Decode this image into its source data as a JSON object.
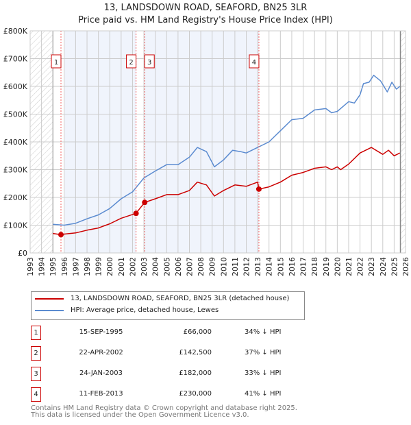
{
  "chart_data": {
    "type": "line",
    "title": "13, LANDSDOWN ROAD, SEAFORD, BN25 3LR",
    "subtitle": "Price paid vs. HM Land Registry's House Price Index (HPI)",
    "xlim": [
      1993,
      2026
    ],
    "ylim": [
      0,
      800000
    ],
    "y_ticks": [
      {
        "v": 0,
        "label": "£0"
      },
      {
        "v": 100000,
        "label": "£100K"
      },
      {
        "v": 200000,
        "label": "£200K"
      },
      {
        "v": 300000,
        "label": "£300K"
      },
      {
        "v": 400000,
        "label": "£400K"
      },
      {
        "v": 500000,
        "label": "£500K"
      },
      {
        "v": 600000,
        "label": "£600K"
      },
      {
        "v": 700000,
        "label": "£700K"
      },
      {
        "v": 800000,
        "label": "£800K"
      }
    ],
    "x_ticks": [
      "1993",
      "1994",
      "1995",
      "1996",
      "1997",
      "1998",
      "1999",
      "2000",
      "2001",
      "2002",
      "2003",
      "2004",
      "2005",
      "2006",
      "2007",
      "2008",
      "2009",
      "2010",
      "2011",
      "2012",
      "2013",
      "2014",
      "2015",
      "2016",
      "2017",
      "2018",
      "2019",
      "2020",
      "2021",
      "2022",
      "2023",
      "2024",
      "2025",
      "2026"
    ],
    "grid": true,
    "series": [
      {
        "name": "13, LANDSDOWN ROAD, SEAFORD, BN25 3LR (detached house)",
        "color": "#cc0000",
        "x": [
          1995,
          1995.7,
          1996,
          1997,
          1998,
          1999,
          2000,
          2001,
          2002.3,
          2003.07,
          2004,
          2005,
          2006,
          2007,
          2007.7,
          2008.5,
          2009.2,
          2010,
          2011,
          2012,
          2013,
          2013.11,
          2014,
          2015,
          2016,
          2017,
          2018,
          2019,
          2019.5,
          2020,
          2020.3,
          2021,
          2022,
          2023,
          2024,
          2024.5,
          2025,
          2025.5
        ],
        "y": [
          70000,
          66000,
          68000,
          72000,
          82000,
          90000,
          105000,
          125000,
          142500,
          182000,
          195000,
          210000,
          210000,
          225000,
          255000,
          245000,
          205000,
          225000,
          245000,
          240000,
          255000,
          230000,
          238000,
          255000,
          280000,
          290000,
          305000,
          310000,
          300000,
          310000,
          300000,
          320000,
          360000,
          380000,
          355000,
          370000,
          350000,
          360000
        ]
      },
      {
        "name": "HPI: Average price, detached house, Lewes",
        "color": "#5b8bd0",
        "x": [
          1995,
          1996,
          1997,
          1998,
          1999,
          2000,
          2001,
          2002,
          2003,
          2004,
          2005,
          2006,
          2007,
          2007.7,
          2008.5,
          2009.2,
          2010,
          2010.8,
          2011.5,
          2012,
          2013,
          2014,
          2014.5,
          2015,
          2016,
          2017,
          2018,
          2019,
          2019.5,
          2020,
          2021,
          2021.5,
          2022,
          2022.3,
          2022.8,
          2023.2,
          2023.8,
          2024.4,
          2024.8,
          2025.2,
          2025.5
        ],
        "y": [
          103000,
          100000,
          107000,
          123000,
          137000,
          160000,
          195000,
          220000,
          270000,
          295000,
          318000,
          318000,
          345000,
          380000,
          365000,
          310000,
          335000,
          370000,
          365000,
          360000,
          380000,
          400000,
          420000,
          440000,
          480000,
          485000,
          515000,
          520000,
          505000,
          510000,
          545000,
          540000,
          570000,
          610000,
          615000,
          640000,
          620000,
          580000,
          615000,
          590000,
          600000
        ]
      }
    ],
    "sales": [
      {
        "n": "1",
        "x": 1995.71,
        "y": 66000,
        "date": "15-SEP-1995",
        "price": "£66,000",
        "hpi": "34% ↓ HPI"
      },
      {
        "n": "2",
        "x": 2002.31,
        "y": 142500,
        "date": "22-APR-2002",
        "price": "£142,500",
        "hpi": "37% ↓ HPI"
      },
      {
        "n": "3",
        "x": 2003.07,
        "y": 182000,
        "date": "24-JAN-2003",
        "price": "£182,000",
        "hpi": "33% ↓ HPI"
      },
      {
        "n": "4",
        "x": 2013.11,
        "y": 230000,
        "date": "11-FEB-2013",
        "price": "£230,000",
        "hpi": "41% ↓ HPI"
      }
    ],
    "legend_position": "below"
  },
  "footer": {
    "line1": "Contains HM Land Registry data © Crown copyright and database right 2025.",
    "line2": "This data is licensed under the Open Government Licence v3.0."
  }
}
